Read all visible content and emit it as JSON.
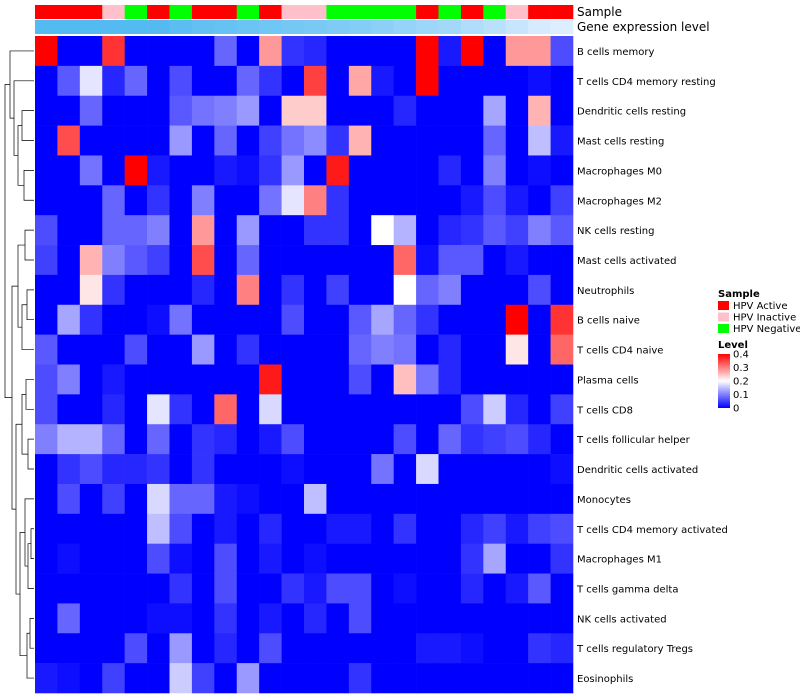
{
  "chart_data": {
    "type": "heatmap",
    "title": "",
    "annotation_labels": {
      "sample": "Sample",
      "level": "Gene expression level"
    },
    "sample_annotation": [
      "HPV Active",
      "HPV Active",
      "HPV Active",
      "HPV Inactive",
      "HPV Negative",
      "HPV Active",
      "HPV Negative",
      "HPV Active",
      "HPV Active",
      "HPV Negative",
      "HPV Active",
      "HPV Inactive",
      "HPV Inactive",
      "HPV Negative",
      "HPV Negative",
      "HPV Negative",
      "HPV Negative",
      "HPV Active",
      "HPV Negative",
      "HPV Active",
      "HPV Negative",
      "HPV Inactive",
      "HPV Active",
      "HPV Active"
    ],
    "level_annotation": [
      0.95,
      0.95,
      0.95,
      0.95,
      0.95,
      0.95,
      0.9,
      0.85,
      0.82,
      0.78,
      0.75,
      0.72,
      0.68,
      0.65,
      0.62,
      0.55,
      0.5,
      0.45,
      0.4,
      0.32,
      0.25,
      0.15,
      0.05,
      0.0
    ],
    "rows": [
      "B cells memory",
      "T cells CD4 memory resting",
      "Dendritic cells resting",
      "Mast cells resting",
      "Macrophages M0",
      "Macrophages M2",
      "NK cells resting",
      "Mast cells activated",
      "Neutrophils",
      "B cells naive",
      "T cells CD4 naive",
      "Plasma cells",
      "T cells CD8",
      "T cells follicular helper",
      "Dendritic cells activated",
      "Monocytes",
      "T cells CD4 memory activated",
      "Macrophages M1",
      "T cells gamma delta",
      "NK cells activated",
      "T cells regulatory  Tregs",
      "Eosinophils"
    ],
    "values": [
      [
        0.4,
        0.0,
        0.0,
        0.36,
        0.0,
        0.0,
        0.0,
        0.0,
        0.08,
        0.0,
        0.28,
        0.04,
        0.03,
        0.0,
        0.0,
        0.0,
        0.0,
        0.4,
        0.02,
        0.4,
        0.0,
        0.28,
        0.28,
        0.06
      ],
      [
        0.0,
        0.07,
        0.18,
        0.03,
        0.08,
        0.0,
        0.06,
        0.0,
        0.0,
        0.08,
        0.04,
        0.0,
        0.35,
        0.0,
        0.27,
        0.02,
        0.0,
        0.4,
        0.0,
        0.0,
        0.0,
        0.0,
        0.01,
        0.0
      ],
      [
        0.0,
        0.0,
        0.08,
        0.0,
        0.0,
        0.0,
        0.07,
        0.09,
        0.1,
        0.12,
        0.0,
        0.24,
        0.24,
        0.0,
        0.0,
        0.0,
        0.03,
        0.0,
        0.0,
        0.0,
        0.13,
        0.0,
        0.26,
        0.0
      ],
      [
        0.0,
        0.34,
        0.0,
        0.0,
        0.0,
        0.0,
        0.12,
        0.0,
        0.08,
        0.0,
        0.05,
        0.09,
        0.11,
        0.04,
        0.26,
        0.0,
        0.0,
        0.0,
        0.0,
        0.0,
        0.08,
        0.0,
        0.15,
        0.02
      ],
      [
        0.0,
        0.0,
        0.09,
        0.0,
        0.4,
        0.02,
        0.0,
        0.0,
        0.02,
        0.01,
        0.04,
        0.12,
        0.0,
        0.38,
        0.0,
        0.0,
        0.0,
        0.0,
        0.03,
        0.0,
        0.1,
        0.0,
        0.01,
        0.0
      ],
      [
        0.0,
        0.0,
        0.0,
        0.08,
        0.0,
        0.04,
        0.0,
        0.1,
        0.0,
        0.0,
        0.09,
        0.18,
        0.3,
        0.04,
        0.0,
        0.0,
        0.0,
        0.0,
        0.0,
        0.02,
        0.06,
        0.02,
        0.0,
        0.05
      ],
      [
        0.06,
        0.0,
        0.0,
        0.08,
        0.08,
        0.1,
        0.0,
        0.28,
        0.0,
        0.12,
        0.0,
        0.0,
        0.04,
        0.04,
        0.0,
        0.2,
        0.14,
        0.0,
        0.03,
        0.04,
        0.07,
        0.05,
        0.1,
        0.07
      ],
      [
        0.05,
        0.0,
        0.26,
        0.1,
        0.07,
        0.05,
        0.0,
        0.34,
        0.0,
        0.08,
        0.0,
        0.0,
        0.0,
        0.0,
        0.0,
        0.0,
        0.32,
        0.01,
        0.07,
        0.07,
        0.0,
        0.02,
        0.0,
        0.0
      ],
      [
        0.0,
        0.0,
        0.22,
        0.04,
        0.0,
        0.0,
        0.0,
        0.03,
        0.0,
        0.3,
        0.0,
        0.04,
        0.0,
        0.05,
        0.0,
        0.0,
        0.2,
        0.08,
        0.1,
        0.0,
        0.0,
        0.0,
        0.06,
        0.0
      ],
      [
        0.0,
        0.13,
        0.04,
        0.0,
        0.0,
        0.01,
        0.09,
        0.0,
        0.0,
        0.0,
        0.0,
        0.06,
        0.0,
        0.0,
        0.07,
        0.13,
        0.08,
        0.04,
        0.0,
        0.0,
        0.0,
        0.4,
        0.0,
        0.36
      ],
      [
        0.07,
        0.0,
        0.0,
        0.0,
        0.06,
        0.0,
        0.0,
        0.12,
        0.0,
        0.04,
        0.0,
        0.0,
        0.0,
        0.0,
        0.08,
        0.1,
        0.09,
        0.0,
        0.03,
        0.0,
        0.0,
        0.22,
        0.0,
        0.32
      ],
      [
        0.06,
        0.1,
        0.0,
        0.02,
        0.0,
        0.0,
        0.0,
        0.0,
        0.0,
        0.0,
        0.38,
        0.0,
        0.0,
        0.0,
        0.06,
        0.0,
        0.25,
        0.09,
        0.03,
        0.0,
        0.0,
        0.0,
        0.0,
        0.0
      ],
      [
        0.06,
        0.0,
        0.0,
        0.03,
        0.0,
        0.18,
        0.04,
        0.0,
        0.32,
        0.0,
        0.17,
        0.0,
        0.0,
        0.0,
        0.0,
        0.0,
        0.0,
        0.0,
        0.0,
        0.06,
        0.16,
        0.03,
        0.0,
        0.05
      ],
      [
        0.1,
        0.14,
        0.14,
        0.08,
        0.0,
        0.08,
        0.0,
        0.04,
        0.03,
        0.0,
        0.02,
        0.06,
        0.0,
        0.0,
        0.0,
        0.0,
        0.06,
        0.0,
        0.08,
        0.04,
        0.05,
        0.06,
        0.03,
        0.0
      ],
      [
        0.0,
        0.04,
        0.06,
        0.03,
        0.03,
        0.04,
        0.0,
        0.04,
        0.0,
        0.0,
        0.0,
        0.01,
        0.0,
        0.0,
        0.0,
        0.09,
        0.0,
        0.17,
        0.0,
        0.0,
        0.0,
        0.0,
        0.0,
        0.01
      ],
      [
        0.0,
        0.06,
        0.0,
        0.05,
        0.0,
        0.17,
        0.08,
        0.08,
        0.02,
        0.01,
        0.0,
        0.0,
        0.15,
        0.0,
        0.0,
        0.0,
        0.0,
        0.0,
        0.0,
        0.0,
        0.0,
        0.0,
        0.0,
        0.0
      ],
      [
        0.0,
        0.0,
        0.0,
        0.0,
        0.0,
        0.15,
        0.06,
        0.0,
        0.02,
        0.0,
        0.03,
        0.0,
        0.0,
        0.02,
        0.02,
        0.0,
        0.04,
        0.0,
        0.0,
        0.03,
        0.05,
        0.02,
        0.05,
        0.06
      ],
      [
        0.0,
        0.01,
        0.0,
        0.0,
        0.0,
        0.06,
        0.01,
        0.0,
        0.06,
        0.0,
        0.02,
        0.0,
        0.01,
        0.0,
        0.0,
        0.0,
        0.0,
        0.0,
        0.0,
        0.04,
        0.13,
        0.0,
        0.0,
        0.04
      ],
      [
        0.0,
        0.0,
        0.0,
        0.0,
        0.0,
        0.0,
        0.04,
        0.0,
        0.06,
        0.0,
        0.0,
        0.04,
        0.02,
        0.06,
        0.06,
        0.0,
        0.01,
        0.0,
        0.0,
        0.03,
        0.0,
        0.02,
        0.07,
        0.0
      ],
      [
        0.0,
        0.08,
        0.0,
        0.0,
        0.0,
        0.01,
        0.01,
        0.0,
        0.04,
        0.0,
        0.02,
        0.0,
        0.03,
        0.0,
        0.06,
        0.0,
        0.0,
        0.0,
        0.0,
        0.0,
        0.0,
        0.0,
        0.0,
        0.0
      ],
      [
        0.0,
        0.0,
        0.0,
        0.0,
        0.06,
        0.0,
        0.12,
        0.0,
        0.03,
        0.0,
        0.06,
        0.0,
        0.0,
        0.0,
        0.0,
        0.0,
        0.0,
        0.02,
        0.02,
        0.01,
        0.0,
        0.0,
        0.04,
        0.03
      ],
      [
        0.02,
        0.01,
        0.0,
        0.05,
        0.0,
        0.0,
        0.16,
        0.05,
        0.0,
        0.12,
        0.0,
        0.0,
        0.0,
        0.0,
        0.04,
        0.0,
        0.0,
        0.0,
        0.0,
        0.0,
        0.0,
        0.0,
        0.0,
        0.0
      ]
    ],
    "legend": {
      "sample": {
        "title": "Sample",
        "entries": [
          {
            "label": "HPV Active",
            "color": "#ff0000"
          },
          {
            "label": "HPV Inactive",
            "color": "#ffc0cb"
          },
          {
            "label": "HPV Negative",
            "color": "#00ff00"
          }
        ]
      },
      "level": {
        "title": "Level",
        "ticks": [
          "0.4",
          "0.3",
          "0.2",
          "0.1",
          "0"
        ],
        "tick_values": [
          0.4,
          0.3,
          0.2,
          0.1,
          0.0
        ],
        "range": [
          0,
          0.4
        ]
      }
    },
    "colors": {
      "low": "#0000ff",
      "mid": "#ffffff",
      "high": "#ff0000",
      "level_low": "#ddeeff",
      "level_high": "#4cb8f0"
    }
  }
}
